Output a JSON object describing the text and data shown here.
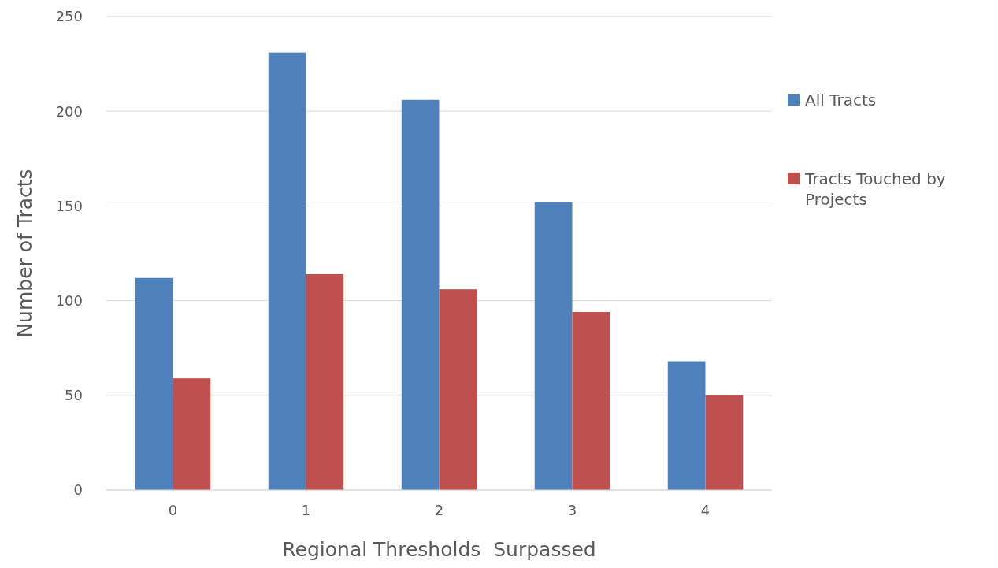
{
  "chart_data": {
    "type": "bar",
    "xlabel": "Regional Thresholds  Surpassed",
    "ylabel": "Number of Tracts",
    "categories": [
      "0",
      "1",
      "2",
      "3",
      "4"
    ],
    "series": [
      {
        "name": "All Tracts",
        "color": "#4f81bd",
        "values": [
          112,
          231,
          206,
          152,
          68
        ]
      },
      {
        "name": "Tracts Touched by Projects",
        "color": "#c0504d",
        "values": [
          59,
          114,
          106,
          94,
          50
        ]
      }
    ],
    "ylim": [
      0,
      250
    ],
    "yticks": [
      0,
      50,
      100,
      150,
      200,
      250
    ],
    "grid": "y",
    "legend": "right"
  }
}
